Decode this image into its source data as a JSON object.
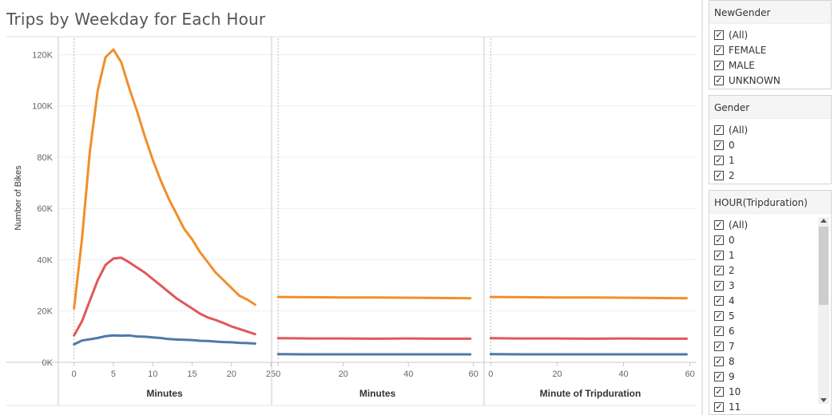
{
  "title": "Trips by Weekday for Each Hour",
  "chart_data": {
    "type": "line",
    "ylabel": "Number of Bikes",
    "yticks": [
      "0K",
      "20K",
      "40K",
      "60K",
      "80K",
      "100K",
      "120K"
    ],
    "ylim": [
      0,
      127000
    ],
    "grid": true,
    "colors": {
      "orange": "#f28e2b",
      "red": "#e15759",
      "blue": "#4e79a7"
    },
    "panels": [
      {
        "xlabel": "Minutes",
        "xlim": [
          -2,
          25
        ],
        "xticks": [
          0,
          5,
          10,
          15,
          20,
          25
        ],
        "series": [
          {
            "color": "orange",
            "x": [
              0,
              1,
              2,
              3,
              4,
              5,
              6,
              7,
              8,
              9,
              10,
              11,
              12,
              13,
              14,
              15,
              16,
              17,
              18,
              19,
              20,
              21,
              22,
              23
            ],
            "y": [
              21000,
              48000,
              82000,
              106000,
              119000,
              122000,
              117000,
              107000,
              98000,
              88000,
              79000,
              71000,
              64000,
              58000,
              52000,
              48000,
              43000,
              39000,
              35000,
              32000,
              29000,
              26000,
              24500,
              22500
            ]
          },
          {
            "color": "red",
            "x": [
              0,
              1,
              2,
              3,
              4,
              5,
              6,
              7,
              8,
              9,
              10,
              11,
              12,
              13,
              14,
              15,
              16,
              17,
              18,
              19,
              20,
              21,
              22,
              23
            ],
            "y": [
              10500,
              16000,
              24000,
              32000,
              38000,
              40500,
              40800,
              39000,
              37000,
              35000,
              32500,
              30000,
              27500,
              25000,
              23000,
              21000,
              19000,
              17500,
              16500,
              15300,
              14000,
              13000,
              12000,
              11000
            ]
          },
          {
            "color": "blue",
            "x": [
              0,
              1,
              2,
              3,
              4,
              5,
              6,
              7,
              8,
              9,
              10,
              11,
              12,
              13,
              14,
              15,
              16,
              17,
              18,
              19,
              20,
              21,
              22,
              23
            ],
            "y": [
              7000,
              8500,
              9000,
              9500,
              10200,
              10500,
              10400,
              10500,
              10100,
              10000,
              9700,
              9500,
              9100,
              8900,
              8800,
              8700,
              8400,
              8300,
              8100,
              7900,
              7800,
              7600,
              7500,
              7300
            ]
          }
        ]
      },
      {
        "xlabel": "Minutes",
        "xlim": [
          -2,
          63
        ],
        "xticks": [
          0,
          20,
          40,
          60
        ],
        "series": [
          {
            "color": "orange",
            "x": [
              0,
              10,
              20,
              30,
              40,
              50,
              59
            ],
            "y": [
              25500,
              25400,
              25300,
              25300,
              25200,
              25100,
              25000
            ]
          },
          {
            "color": "red",
            "x": [
              0,
              10,
              20,
              30,
              40,
              50,
              59
            ],
            "y": [
              9400,
              9300,
              9300,
              9200,
              9300,
              9200,
              9200
            ]
          },
          {
            "color": "blue",
            "x": [
              0,
              10,
              20,
              30,
              40,
              50,
              59
            ],
            "y": [
              3200,
              3100,
              3100,
              3100,
              3100,
              3100,
              3100
            ]
          }
        ]
      },
      {
        "xlabel": "Minute of Tripduration",
        "xlim": [
          -2,
          62
        ],
        "xticks": [
          0,
          20,
          40,
          60
        ],
        "series": [
          {
            "color": "orange",
            "x": [
              0,
              10,
              20,
              30,
              40,
              50,
              59
            ],
            "y": [
              25500,
              25400,
              25300,
              25300,
              25200,
              25100,
              25000
            ]
          },
          {
            "color": "red",
            "x": [
              0,
              10,
              20,
              30,
              40,
              50,
              59
            ],
            "y": [
              9400,
              9300,
              9300,
              9200,
              9300,
              9200,
              9200
            ]
          },
          {
            "color": "blue",
            "x": [
              0,
              10,
              20,
              30,
              40,
              50,
              59
            ],
            "y": [
              3200,
              3100,
              3100,
              3100,
              3100,
              3100,
              3100
            ]
          }
        ]
      }
    ]
  },
  "filters": [
    {
      "title": "NewGender",
      "items": [
        "(All)",
        "FEMALE",
        "MALE",
        "UNKNOWN"
      ]
    },
    {
      "title": "Gender",
      "items": [
        "(All)",
        "0",
        "1",
        "2"
      ]
    },
    {
      "title": "HOUR(Tripduration)",
      "items": [
        "(All)",
        "0",
        "1",
        "2",
        "3",
        "4",
        "5",
        "6",
        "7",
        "8",
        "9",
        "10",
        "11"
      ]
    }
  ],
  "checkbox_glyph": "✓"
}
